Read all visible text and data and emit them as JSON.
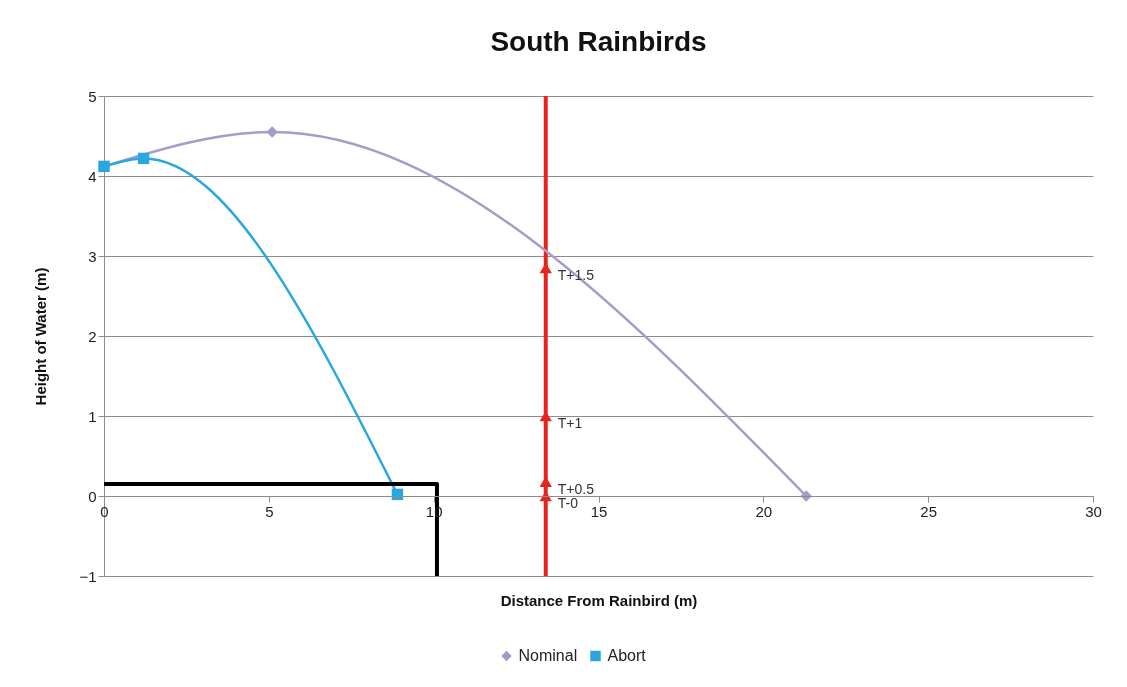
{
  "chart_data": {
    "type": "line",
    "title": "South Rainbirds",
    "xlabel": "Distance From Rainbird (m)",
    "ylabel": "Height of Water (m)",
    "xlim": [
      0,
      30
    ],
    "xticks": [
      0,
      5,
      10,
      15,
      20,
      25,
      30
    ],
    "ylim": [
      -1,
      5
    ],
    "yticks": [
      -1,
      0,
      1,
      2,
      3,
      4,
      5
    ],
    "grid": "y",
    "legend": "bottom",
    "series": [
      {
        "name": "Nominal",
        "color": "#a99bc9",
        "marker": "diamond",
        "x": [
          0,
          5.1,
          21.3
        ],
        "values": [
          4.12,
          4.55,
          0
        ]
      },
      {
        "name": "Abort",
        "color": "#2aa7de",
        "marker": "square",
        "x": [
          0,
          1.2,
          8.9
        ],
        "values": [
          4.12,
          4.22,
          0.02
        ]
      },
      {
        "color": "#000000",
        "marker": "none",
        "x": [
          0,
          10.1,
          10.1
        ],
        "values": [
          0.15,
          0.15,
          -1
        ]
      },
      {
        "color": "#e8231c",
        "type": "scatter",
        "marker": "triangle",
        "x": [
          13.4,
          13.4,
          13.4,
          13.4
        ],
        "values": [
          0,
          0.18,
          1,
          2.85
        ],
        "value_labels": [
          "T-0",
          "T+0.5",
          "T+1",
          "T+1.5"
        ]
      }
    ],
    "ref_lines": [
      {
        "axis": "x",
        "value": 13.4,
        "color": "#e8231c"
      }
    ]
  }
}
